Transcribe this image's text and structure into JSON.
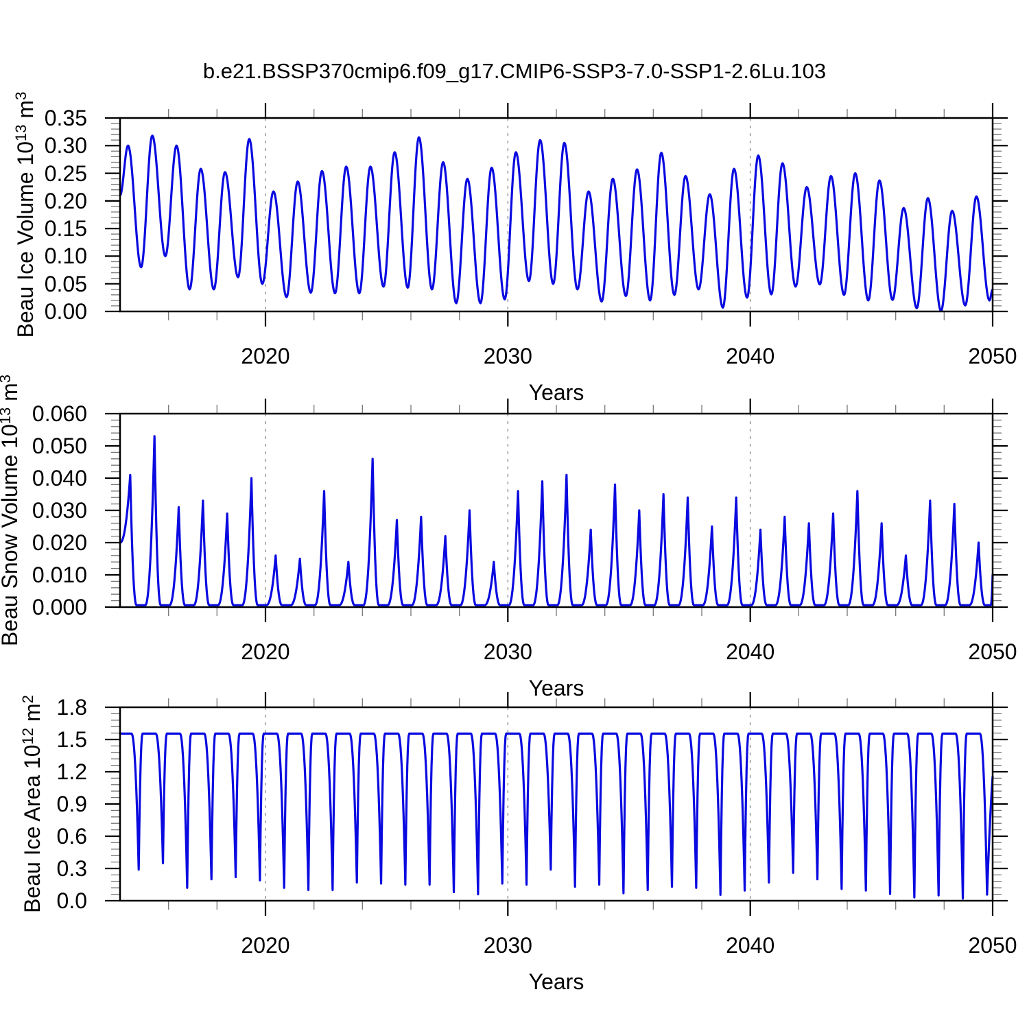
{
  "figure_title": "b.e21.BSSP370cmip6.f09_g17.CMIP6-SSP3-7.0-SSP1-2.6Lu.103",
  "style": {
    "line_color": "#0a0ae0",
    "axis_color": "#000000",
    "minor_tick_color": "#777777",
    "grid_color": "#999999",
    "background": "#ffffff"
  },
  "chart_data": [
    {
      "type": "line",
      "id": "beau-ice-volume",
      "ylabel": "Beau Ice Volume 10^13 m^3",
      "ylabel_segments": [
        {
          "t": "Beau Ice Volume 10"
        },
        {
          "t": "13",
          "sup": true
        },
        {
          "t": " m"
        },
        {
          "t": "3",
          "sup": true
        }
      ],
      "xlabel": "Years",
      "xlim": [
        2014,
        2050
      ],
      "ylim": [
        0,
        0.35
      ],
      "x_major_ticks": [
        2020,
        2030,
        2040,
        2050
      ],
      "x_tick_labels": [
        "2020",
        "2030",
        "2040",
        "2050"
      ],
      "x_minor_step": 2,
      "y_major_ticks": [
        0,
        0.05,
        0.1,
        0.15,
        0.2,
        0.25,
        0.3,
        0.35
      ],
      "y_tick_labels": [
        "0.00",
        "0.05",
        "0.10",
        "0.15",
        "0.20",
        "0.25",
        "0.30",
        "0.35"
      ],
      "y_minor_step": 0.01,
      "x_gridlines": [
        2020,
        2030,
        2040
      ],
      "grid": true,
      "legend": "none",
      "series": {
        "name": "Beau Ice Volume",
        "shape": "seasonal-sine",
        "start_year": 2014,
        "peak_phase": 0.33,
        "trough_phase": 0.87,
        "start_value": 0.21,
        "end_value": 0.04,
        "annual_peaks": [
          0.3,
          0.318,
          0.3,
          0.258,
          0.252,
          0.312,
          0.217,
          0.235,
          0.254,
          0.262,
          0.262,
          0.288,
          0.315,
          0.27,
          0.24,
          0.26,
          0.288,
          0.31,
          0.305,
          0.217,
          0.24,
          0.257,
          0.287,
          0.245,
          0.212,
          0.258,
          0.282,
          0.268,
          0.225,
          0.245,
          0.25,
          0.237,
          0.187,
          0.205,
          0.182,
          0.208
        ],
        "annual_troughs": [
          0.08,
          0.1,
          0.04,
          0.04,
          0.062,
          0.05,
          0.026,
          0.034,
          0.033,
          0.033,
          0.045,
          0.043,
          0.04,
          0.015,
          0.015,
          0.022,
          0.055,
          0.05,
          0.04,
          0.018,
          0.028,
          0.02,
          0.03,
          0.04,
          0.007,
          0.025,
          0.031,
          0.045,
          0.049,
          0.03,
          0.02,
          0.021,
          0.006,
          0.001,
          0.011,
          0.02
        ]
      }
    },
    {
      "type": "line",
      "id": "beau-snow-volume",
      "ylabel": "Beau Snow Volume 10^13 m^3",
      "ylabel_segments": [
        {
          "t": "Beau Snow Volume 10"
        },
        {
          "t": "13",
          "sup": true
        },
        {
          "t": " m"
        },
        {
          "t": "3",
          "sup": true
        }
      ],
      "xlabel": "Years",
      "xlim": [
        2014,
        2050
      ],
      "ylim": [
        0,
        0.06
      ],
      "x_major_ticks": [
        2020,
        2030,
        2040,
        2050
      ],
      "x_tick_labels": [
        "2020",
        "2030",
        "2040",
        "2050"
      ],
      "x_minor_step": 2,
      "y_major_ticks": [
        0,
        0.01,
        0.02,
        0.03,
        0.04,
        0.05,
        0.06
      ],
      "y_tick_labels": [
        "0.000",
        "0.010",
        "0.020",
        "0.030",
        "0.040",
        "0.050",
        "0.060"
      ],
      "y_minor_step": 0.002,
      "x_gridlines": [
        2020,
        2030,
        2040
      ],
      "grid": true,
      "legend": "none",
      "series": {
        "name": "Beau Snow Volume",
        "shape": "seasonal-spike",
        "start_year": 2014,
        "peak_phase": 0.42,
        "zero_start_phase": 0.68,
        "zero_end_phase": 1.04,
        "floor_value": 0.0006,
        "start_value": 0.02,
        "end_value": 0.01,
        "annual_peaks": [
          0.041,
          0.053,
          0.031,
          0.033,
          0.029,
          0.04,
          0.016,
          0.015,
          0.036,
          0.014,
          0.046,
          0.027,
          0.028,
          0.022,
          0.03,
          0.014,
          0.036,
          0.039,
          0.041,
          0.024,
          0.038,
          0.03,
          0.035,
          0.034,
          0.025,
          0.034,
          0.024,
          0.028,
          0.026,
          0.029,
          0.036,
          0.026,
          0.016,
          0.033,
          0.032,
          0.02
        ]
      }
    },
    {
      "type": "line",
      "id": "beau-ice-area",
      "ylabel": "Beau Ice Area 10^12 m^2",
      "ylabel_segments": [
        {
          "t": "Beau Ice Area 10"
        },
        {
          "t": "12",
          "sup": true
        },
        {
          "t": " m"
        },
        {
          "t": "2",
          "sup": true
        }
      ],
      "xlabel": "Years",
      "xlim": [
        2014,
        2050
      ],
      "ylim": [
        0,
        1.8
      ],
      "x_major_ticks": [
        2020,
        2030,
        2040,
        2050
      ],
      "x_tick_labels": [
        "2020",
        "2030",
        "2040",
        "2050"
      ],
      "x_minor_step": 2,
      "y_major_ticks": [
        0,
        0.3,
        0.6,
        0.9,
        1.2,
        1.5,
        1.8
      ],
      "y_tick_labels": [
        "0.0",
        "0.3",
        "0.6",
        "0.9",
        "1.2",
        "1.5",
        "1.8"
      ],
      "y_minor_step": 0.06,
      "x_gridlines": [
        2020,
        2030,
        2040
      ],
      "grid": true,
      "legend": "none",
      "series": {
        "name": "Beau Ice Area",
        "shape": "seasonal-plateau",
        "start_year": 2014,
        "plateau_value": 1.555,
        "plateau_end_phase": 0.47,
        "dip_phase": 0.77,
        "rise_end_phase": 0.93,
        "start_value": 1.555,
        "end_value": 1.15,
        "annual_minima": [
          0.29,
          0.35,
          0.12,
          0.2,
          0.22,
          0.19,
          0.12,
          0.1,
          0.1,
          0.17,
          0.16,
          0.15,
          0.15,
          0.08,
          0.06,
          0.16,
          0.15,
          0.29,
          0.13,
          0.15,
          0.07,
          0.1,
          0.13,
          0.12,
          0.055,
          0.095,
          0.17,
          0.26,
          0.2,
          0.11,
          0.095,
          0.063,
          0.031,
          0.05,
          0.02,
          0.057
        ]
      }
    }
  ]
}
